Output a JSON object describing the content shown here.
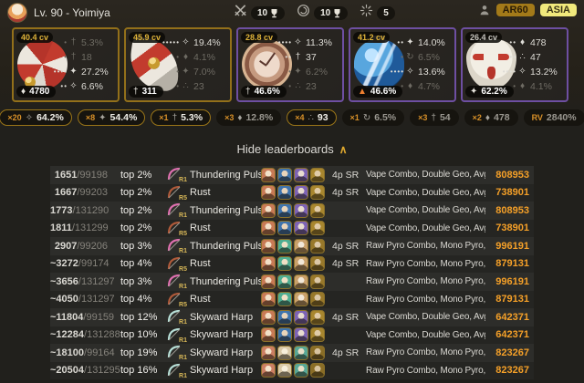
{
  "header": {
    "title": "Lv. 90 - Yoimiya",
    "stat_counters": [
      {
        "icon": "crossed-swords-icon",
        "count": "10",
        "cup": true
      },
      {
        "icon": "abyss-spiral-icon",
        "count": "10",
        "cup": true
      },
      {
        "icon": "abyss-star-icon",
        "count": "5",
        "cup": false
      }
    ],
    "ar_badge": "AR60",
    "region_badge": "ASIA"
  },
  "colors": {
    "gold_border": "#93701a",
    "purple_border": "#6e4fa2",
    "damage": "#f5a028",
    "cv_gold": "#e0b43a"
  },
  "artifacts": [
    {
      "cv": "40.4 cv",
      "cv_dim": false,
      "quality": "gold",
      "slot": "flower",
      "main": {
        "icon": "hp",
        "value": "4780"
      },
      "substats": [
        {
          "dots": 1,
          "icon": "atk",
          "value": "5.3%",
          "active": false
        },
        {
          "dots": 1,
          "icon": "atk",
          "value": "18",
          "active": false
        },
        {
          "dots": 4,
          "icon": "crit-dmg",
          "value": "27.2%",
          "active": true
        },
        {
          "dots": 2,
          "icon": "crit-rate",
          "value": "6.6%",
          "active": true
        }
      ]
    },
    {
      "cv": "45.9 cv",
      "cv_dim": false,
      "quality": "gold",
      "slot": "plume",
      "main": {
        "icon": "atk",
        "value": "311"
      },
      "substats": [
        {
          "dots": 5,
          "icon": "crit-rate",
          "value": "19.4%",
          "active": true
        },
        {
          "dots": 1,
          "icon": "hp",
          "value": "4.1%",
          "active": false
        },
        {
          "dots": 1,
          "icon": "crit-dmg",
          "value": "7.0%",
          "active": false
        },
        {
          "dots": 1,
          "icon": "em",
          "value": "23",
          "active": false
        }
      ]
    },
    {
      "cv": "28.8 cv",
      "cv_dim": false,
      "quality": "purple",
      "slot": "sands",
      "main": {
        "icon": "atk",
        "value": "46.6%"
      },
      "substats": [
        {
          "dots": 4,
          "icon": "crit-rate",
          "value": "11.3%",
          "active": true
        },
        {
          "dots": 2,
          "icon": "atk",
          "value": "37",
          "active": true
        },
        {
          "dots": 1,
          "icon": "crit-dmg",
          "value": "6.2%",
          "active": false
        },
        {
          "dots": 1,
          "icon": "em",
          "value": "23",
          "active": false
        }
      ]
    },
    {
      "cv": "41.2 cv",
      "cv_dim": false,
      "quality": "purple",
      "slot": "goblet",
      "main": {
        "icon": "pyro",
        "value": "46.6%"
      },
      "substats": [
        {
          "dots": 2,
          "icon": "crit-dmg",
          "value": "14.0%",
          "active": true
        },
        {
          "dots": 1,
          "icon": "er",
          "value": "6.5%",
          "active": false
        },
        {
          "dots": 4,
          "icon": "crit-rate",
          "value": "13.6%",
          "active": true
        },
        {
          "dots": 1,
          "icon": "hp",
          "value": "4.7%",
          "active": false
        }
      ]
    },
    {
      "cv": "26.4 cv",
      "cv_dim": true,
      "quality": "purple",
      "slot": "circlet",
      "main": {
        "icon": "crit-dmg",
        "value": "62.2%"
      },
      "substats": [
        {
          "dots": 2,
          "icon": "hp",
          "value": "478",
          "active": true
        },
        {
          "dots": 2,
          "icon": "em",
          "value": "47",
          "active": true
        },
        {
          "dots": 4,
          "icon": "crit-rate",
          "value": "13.2%",
          "active": true
        },
        {
          "dots": 1,
          "icon": "hp",
          "value": "4.1%",
          "active": false
        }
      ]
    }
  ],
  "substat_badges": [
    {
      "mult": "×20",
      "icon": "crit-rate",
      "value": "64.2%",
      "hl": true
    },
    {
      "mult": "×8",
      "icon": "crit-dmg",
      "value": "54.4%",
      "hl": true
    },
    {
      "mult": "×1",
      "icon": "atk",
      "value": "5.3%",
      "hl": true
    },
    {
      "mult": "×3",
      "icon": "hp",
      "value": "12.8%",
      "hl": false
    },
    {
      "mult": "×4",
      "icon": "em",
      "value": "93",
      "hl": true
    },
    {
      "mult": "×1",
      "icon": "er",
      "value": "6.5%",
      "hl": false
    },
    {
      "mult": "×3",
      "icon": "atk",
      "value": "54",
      "hl": false
    },
    {
      "mult": "×2",
      "icon": "hp",
      "value": "478",
      "hl": false
    },
    {
      "mult": "RV",
      "icon": null,
      "value": "2840%",
      "hl": false
    }
  ],
  "leaderboard": {
    "toggle_label": "Hide leaderboards",
    "chevron": "∧",
    "weapon_colors": {
      "Thundering Pulse": "#e070b0",
      "Rust": "#b05a3a",
      "Skyward Harp": "#b8e0d8"
    },
    "teams": {
      "A": [
        {
          "bg": "#c87a55",
          "face": "#f2e0c8"
        },
        {
          "bg": "#3f74ad",
          "face": "#e8d4ba"
        },
        {
          "bg": "#7d63b5",
          "face": "#e8dcd0"
        },
        {
          "bg": "#a8862e",
          "face": "#e0cba8"
        }
      ],
      "B": [
        {
          "bg": "#c87a55",
          "face": "#f2e0c8"
        },
        {
          "bg": "#4fae92",
          "face": "#efe0c5"
        },
        {
          "bg": "#c9a06a",
          "face": "#f2e8d8"
        },
        {
          "bg": "#98782a",
          "face": "#dcc8a8"
        }
      ],
      "C": [
        {
          "bg": "#cc7f63",
          "face": "#f4e4cc"
        },
        {
          "bg": "#d9c9a8",
          "face": "#f6eeda"
        },
        {
          "bg": "#58a796",
          "face": "#eadfc8"
        },
        {
          "bg": "#8a6d26",
          "face": "#d8c4a0"
        }
      ]
    },
    "rows": [
      {
        "rank": "1651",
        "total": "/99198",
        "top": "top 2%",
        "refine": "R1",
        "weapon": "Thundering Pulse",
        "team": "A",
        "badge": "4p SR",
        "desc": "Vape Combo, Double Geo, Avg DMG",
        "dmg": "808953"
      },
      {
        "rank": "1667",
        "total": "/99203",
        "top": "top 2%",
        "refine": "R5",
        "weapon": "Rust",
        "team": "A",
        "badge": "4p SR",
        "desc": "Vape Combo, Double Geo, Avg DMG",
        "dmg": "738901"
      },
      {
        "rank": "1773",
        "total": "/131290",
        "top": "top 2%",
        "refine": "R1",
        "weapon": "Thundering Pulse",
        "team": "A",
        "badge": "",
        "desc": "Vape Combo, Double Geo, Avg DMG",
        "dmg": "808953"
      },
      {
        "rank": "1811",
        "total": "/131299",
        "top": "top 2%",
        "refine": "R5",
        "weapon": "Rust",
        "team": "A",
        "badge": "",
        "desc": "Vape Combo, Double Geo, Avg DMG",
        "dmg": "738901"
      },
      {
        "rank": "2907",
        "total": "/99206",
        "top": "top 3%",
        "refine": "R1",
        "weapon": "Thundering Pulse",
        "team": "B",
        "badge": "4p SR",
        "desc": "Raw Pyro Combo, Mono Pyro, Avg DMG",
        "dmg": "996191"
      },
      {
        "rank": "~3272",
        "total": "/99174",
        "top": "top 4%",
        "refine": "R5",
        "weapon": "Rust",
        "team": "B",
        "badge": "4p SR",
        "desc": "Raw Pyro Combo, Mono Pyro, Avg DMG",
        "dmg": "879131"
      },
      {
        "rank": "~3656",
        "total": "/131297",
        "top": "top 3%",
        "refine": "R1",
        "weapon": "Thundering Pulse",
        "team": "B",
        "badge": "",
        "desc": "Raw Pyro Combo, Mono Pyro, Avg DMG",
        "dmg": "996191"
      },
      {
        "rank": "~4050",
        "total": "/131297",
        "top": "top 4%",
        "refine": "R5",
        "weapon": "Rust",
        "team": "B",
        "badge": "",
        "desc": "Raw Pyro Combo, Mono Pyro, Avg DMG",
        "dmg": "879131"
      },
      {
        "rank": "~11804",
        "total": "/99159",
        "top": "top 12%",
        "refine": "R1",
        "weapon": "Skyward Harp",
        "team": "A",
        "badge": "4p SR",
        "desc": "Vape Combo, Double Geo, Avg DMG",
        "dmg": "642371"
      },
      {
        "rank": "~12284",
        "total": "/131288",
        "top": "top 10%",
        "refine": "R1",
        "weapon": "Skyward Harp",
        "team": "A",
        "badge": "",
        "desc": "Vape Combo, Double Geo, Avg DMG",
        "dmg": "642371"
      },
      {
        "rank": "~18100",
        "total": "/99164",
        "top": "top 19%",
        "refine": "R1",
        "weapon": "Skyward Harp",
        "team": "C",
        "badge": "4p SR",
        "desc": "Raw Pyro Combo, Mono Pyro, Avg DMG",
        "dmg": "823267"
      },
      {
        "rank": "~20504",
        "total": "/131295",
        "top": "top 16%",
        "refine": "R1",
        "weapon": "Skyward Harp",
        "team": "C",
        "badge": "",
        "desc": "Raw Pyro Combo, Mono Pyro, Avg DMG",
        "dmg": "823267"
      }
    ]
  }
}
